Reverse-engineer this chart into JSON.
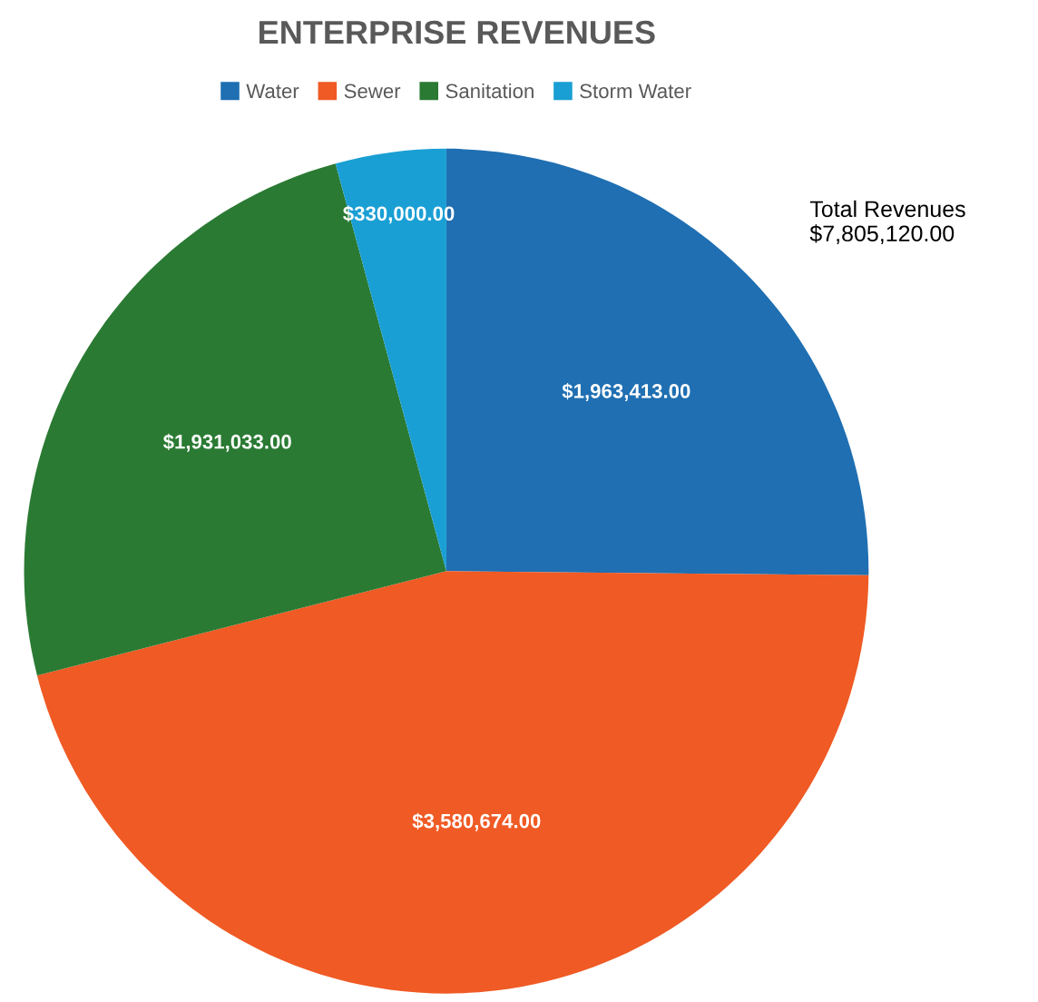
{
  "chart_data": {
    "type": "pie",
    "title": "ENTERPRISE REVENUES",
    "categories": [
      "Water",
      "Sewer",
      "Sanitation",
      "Storm Water"
    ],
    "values": [
      1963413,
      3580674,
      1931033,
      330000
    ],
    "colors": [
      "#1f6fb2",
      "#f05a24",
      "#2a7a33",
      "#1a9fd4"
    ],
    "value_labels": [
      "$1,963,413.00",
      "$3,580,674.00",
      "$1,931,033.00",
      "$330,000.00"
    ],
    "annotations": [
      "Total Revenues\n$7,805,120.00"
    ],
    "legend": "top"
  }
}
